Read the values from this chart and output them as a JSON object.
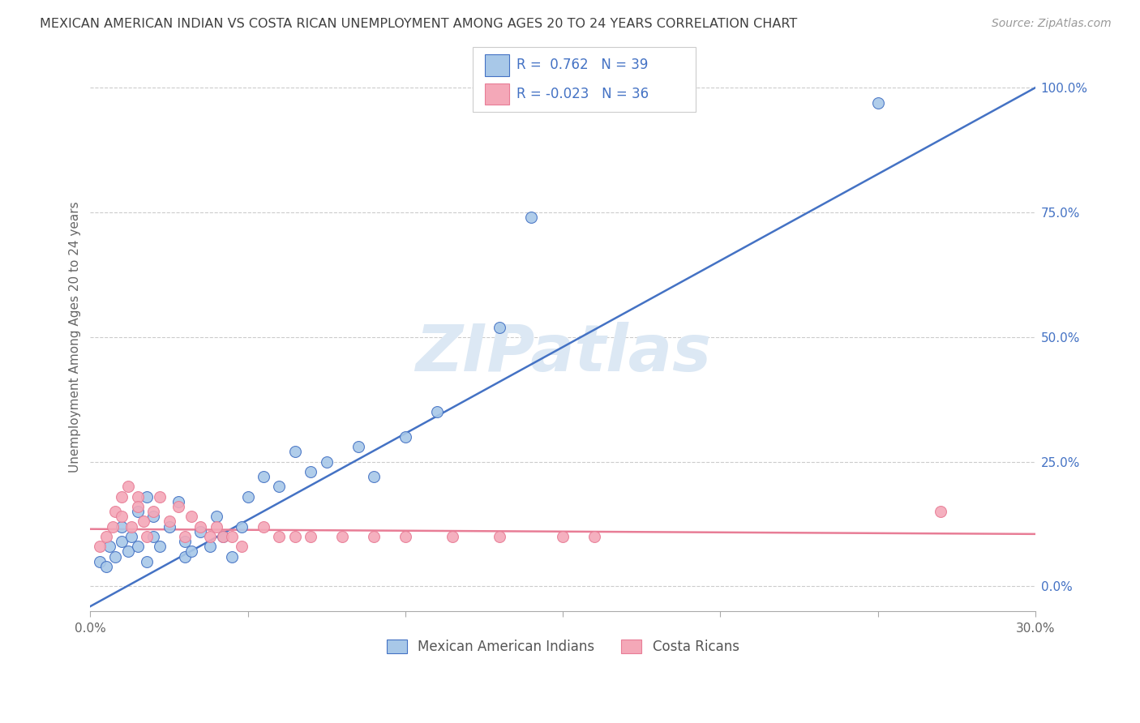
{
  "title": "MEXICAN AMERICAN INDIAN VS COSTA RICAN UNEMPLOYMENT AMONG AGES 20 TO 24 YEARS CORRELATION CHART",
  "source": "Source: ZipAtlas.com",
  "ylabel": "Unemployment Among Ages 20 to 24 years",
  "xlim": [
    0.0,
    0.3
  ],
  "ylim": [
    -0.05,
    1.05
  ],
  "x_ticks": [
    0.0,
    0.05,
    0.1,
    0.15,
    0.2,
    0.25,
    0.3
  ],
  "x_tick_labels": [
    "0.0%",
    "",
    "",
    "",
    "",
    "",
    "30.0%"
  ],
  "y_ticks_right": [
    0.0,
    0.25,
    0.5,
    0.75,
    1.0
  ],
  "y_tick_labels_right": [
    "0.0%",
    "25.0%",
    "50.0%",
    "75.0%",
    "100.0%"
  ],
  "legend1_r": "0.762",
  "legend1_n": "39",
  "legend2_r": "-0.023",
  "legend2_n": "36",
  "legend1_label": "Mexican American Indians",
  "legend2_label": "Costa Ricans",
  "blue_color": "#a8c8e8",
  "pink_color": "#f4a8b8",
  "blue_line_color": "#4472c4",
  "pink_line_color": "#e87d96",
  "title_color": "#404040",
  "source_color": "#999999",
  "legend_r_color": "#4472c4",
  "watermark_color": "#dce8f4",
  "grid_color": "#cccccc",
  "blue_scatter_x": [
    0.003,
    0.005,
    0.006,
    0.008,
    0.01,
    0.01,
    0.012,
    0.013,
    0.015,
    0.015,
    0.018,
    0.018,
    0.02,
    0.02,
    0.022,
    0.025,
    0.028,
    0.03,
    0.03,
    0.032,
    0.035,
    0.038,
    0.04,
    0.042,
    0.045,
    0.048,
    0.05,
    0.055,
    0.06,
    0.065,
    0.07,
    0.075,
    0.085,
    0.09,
    0.1,
    0.11,
    0.13,
    0.14,
    0.25
  ],
  "blue_scatter_y": [
    0.05,
    0.04,
    0.08,
    0.06,
    0.09,
    0.12,
    0.07,
    0.1,
    0.08,
    0.15,
    0.05,
    0.18,
    0.1,
    0.14,
    0.08,
    0.12,
    0.17,
    0.06,
    0.09,
    0.07,
    0.11,
    0.08,
    0.14,
    0.1,
    0.06,
    0.12,
    0.18,
    0.22,
    0.2,
    0.27,
    0.23,
    0.25,
    0.28,
    0.22,
    0.3,
    0.35,
    0.52,
    0.74,
    0.97
  ],
  "pink_scatter_x": [
    0.003,
    0.005,
    0.007,
    0.008,
    0.01,
    0.01,
    0.012,
    0.013,
    0.015,
    0.015,
    0.017,
    0.018,
    0.02,
    0.022,
    0.025,
    0.028,
    0.03,
    0.032,
    0.035,
    0.038,
    0.04,
    0.042,
    0.045,
    0.048,
    0.055,
    0.06,
    0.065,
    0.07,
    0.08,
    0.09,
    0.1,
    0.115,
    0.13,
    0.15,
    0.16,
    0.27
  ],
  "pink_scatter_y": [
    0.08,
    0.1,
    0.12,
    0.15,
    0.18,
    0.14,
    0.2,
    0.12,
    0.18,
    0.16,
    0.13,
    0.1,
    0.15,
    0.18,
    0.13,
    0.16,
    0.1,
    0.14,
    0.12,
    0.1,
    0.12,
    0.1,
    0.1,
    0.08,
    0.12,
    0.1,
    0.1,
    0.1,
    0.1,
    0.1,
    0.1,
    0.1,
    0.1,
    0.1,
    0.1,
    0.15
  ],
  "blue_line_x": [
    0.0,
    0.3
  ],
  "blue_line_y": [
    -0.04,
    1.0
  ],
  "pink_line_x": [
    0.0,
    0.3
  ],
  "pink_line_y": [
    0.115,
    0.105
  ]
}
